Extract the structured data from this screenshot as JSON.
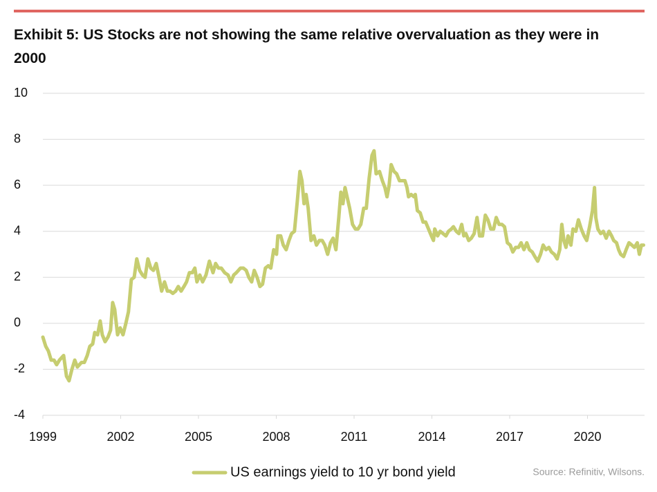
{
  "chart_data": {
    "type": "line",
    "title": "Exhibit 5: US Stocks are not showing the same relative overvaluation as they were in 2000",
    "source": "Source: Refinitiv, Wilsons.",
    "x": [
      1999.0,
      1999.11,
      1999.21,
      1999.32,
      1999.43,
      1999.53,
      1999.64,
      1999.8,
      1999.91,
      2000.01,
      2000.12,
      2000.23,
      2000.33,
      2000.49,
      2000.6,
      2000.71,
      2000.81,
      2000.92,
      2001.0,
      2001.11,
      2001.21,
      2001.29,
      2001.4,
      2001.51,
      2001.61,
      2001.69,
      2001.77,
      2001.88,
      2001.98,
      2002.09,
      2002.2,
      2002.3,
      2002.41,
      2002.52,
      2002.62,
      2002.73,
      2002.84,
      2002.94,
      2003.05,
      2003.16,
      2003.26,
      2003.37,
      2003.48,
      2003.58,
      2003.69,
      2003.8,
      2003.9,
      2004.01,
      2004.12,
      2004.22,
      2004.33,
      2004.44,
      2004.54,
      2004.65,
      2004.76,
      2004.86,
      2004.94,
      2005.05,
      2005.16,
      2005.29,
      2005.42,
      2005.56,
      2005.66,
      2005.77,
      2005.88,
      2006.01,
      2006.14,
      2006.25,
      2006.36,
      2006.46,
      2006.62,
      2006.73,
      2006.84,
      2006.94,
      2007.05,
      2007.15,
      2007.26,
      2007.37,
      2007.47,
      2007.58,
      2007.69,
      2007.79,
      2007.9,
      2008.01,
      2008.06,
      2008.17,
      2008.27,
      2008.38,
      2008.49,
      2008.59,
      2008.7,
      2008.81,
      2008.91,
      2008.99,
      2009.07,
      2009.15,
      2009.23,
      2009.34,
      2009.45,
      2009.55,
      2009.66,
      2009.77,
      2009.87,
      2009.98,
      2010.09,
      2010.19,
      2010.3,
      2010.41,
      2010.49,
      2010.57,
      2010.65,
      2010.73,
      2010.83,
      2010.94,
      2011.05,
      2011.15,
      2011.26,
      2011.37,
      2011.47,
      2011.58,
      2011.69,
      2011.77,
      2011.85,
      2011.98,
      2012.09,
      2012.19,
      2012.27,
      2012.35,
      2012.43,
      2012.54,
      2012.64,
      2012.75,
      2012.86,
      2012.96,
      2013.04,
      2013.1,
      2013.2,
      2013.31,
      2013.36,
      2013.44,
      2013.55,
      2013.66,
      2013.76,
      2013.87,
      2013.98,
      2014.06,
      2014.11,
      2014.22,
      2014.32,
      2014.43,
      2014.54,
      2014.64,
      2014.75,
      2014.83,
      2014.94,
      2015.04,
      2015.15,
      2015.23,
      2015.31,
      2015.42,
      2015.52,
      2015.63,
      2015.74,
      2015.84,
      2015.95,
      2016.06,
      2016.16,
      2016.27,
      2016.38,
      2016.48,
      2016.59,
      2016.7,
      2016.8,
      2016.91,
      2017.02,
      2017.12,
      2017.23,
      2017.34,
      2017.44,
      2017.55,
      2017.66,
      2017.76,
      2017.87,
      2017.97,
      2018.08,
      2018.19,
      2018.29,
      2018.4,
      2018.51,
      2018.61,
      2018.72,
      2018.83,
      2018.93,
      2019.01,
      2019.09,
      2019.17,
      2019.25,
      2019.36,
      2019.44,
      2019.55,
      2019.65,
      2019.76,
      2019.87,
      2019.97,
      2020.08,
      2020.19,
      2020.27,
      2020.32,
      2020.4,
      2020.51,
      2020.61,
      2020.72,
      2020.83,
      2020.93,
      2021.01,
      2021.12,
      2021.2,
      2021.28,
      2021.39,
      2021.49,
      2021.6,
      2021.71,
      2021.81,
      2021.92,
      2022.0,
      2022.08,
      2022.16
    ],
    "series": [
      {
        "name": "US earnings yield to 10 yr bond yield",
        "color": "#c6cd70",
        "values": [
          -0.6,
          -1.0,
          -1.2,
          -1.6,
          -1.6,
          -1.8,
          -1.6,
          -1.4,
          -2.3,
          -2.5,
          -2.0,
          -1.6,
          -1.9,
          -1.7,
          -1.7,
          -1.4,
          -1.0,
          -0.9,
          -0.4,
          -0.5,
          0.1,
          -0.5,
          -0.8,
          -0.6,
          -0.3,
          0.9,
          0.6,
          -0.5,
          -0.2,
          -0.5,
          0.0,
          0.5,
          1.9,
          2.0,
          2.8,
          2.3,
          2.1,
          2.0,
          2.8,
          2.4,
          2.3,
          2.6,
          2.0,
          1.4,
          1.8,
          1.4,
          1.4,
          1.3,
          1.4,
          1.6,
          1.4,
          1.6,
          1.8,
          2.2,
          2.2,
          2.4,
          1.8,
          2.1,
          1.8,
          2.1,
          2.7,
          2.2,
          2.6,
          2.4,
          2.4,
          2.2,
          2.1,
          1.8,
          2.1,
          2.2,
          2.4,
          2.4,
          2.3,
          2.0,
          1.8,
          2.3,
          2.0,
          1.6,
          1.7,
          2.4,
          2.5,
          2.4,
          3.2,
          3.0,
          3.8,
          3.8,
          3.4,
          3.2,
          3.6,
          3.9,
          4.0,
          5.3,
          6.6,
          6.2,
          5.2,
          5.6,
          5.0,
          3.6,
          3.8,
          3.4,
          3.6,
          3.6,
          3.4,
          3.0,
          3.5,
          3.7,
          3.2,
          4.6,
          5.7,
          5.2,
          5.9,
          5.5,
          5.0,
          4.3,
          4.1,
          4.1,
          4.3,
          5.0,
          5.0,
          6.3,
          7.3,
          7.5,
          6.5,
          6.6,
          6.2,
          5.9,
          5.5,
          6.0,
          6.9,
          6.6,
          6.5,
          6.2,
          6.2,
          6.2,
          5.9,
          5.5,
          5.6,
          5.5,
          5.6,
          4.9,
          4.8,
          4.4,
          4.4,
          4.1,
          3.8,
          3.6,
          4.1,
          3.8,
          4.0,
          3.9,
          3.8,
          4.0,
          4.1,
          4.2,
          4.0,
          3.9,
          4.3,
          3.8,
          3.9,
          3.6,
          3.7,
          3.9,
          4.6,
          3.8,
          3.8,
          4.7,
          4.5,
          4.1,
          4.1,
          4.6,
          4.3,
          4.3,
          4.2,
          3.5,
          3.4,
          3.1,
          3.3,
          3.3,
          3.5,
          3.2,
          3.5,
          3.2,
          3.1,
          2.9,
          2.7,
          3.0,
          3.4,
          3.2,
          3.3,
          3.1,
          3.0,
          2.8,
          3.2,
          4.3,
          3.6,
          3.3,
          3.8,
          3.4,
          4.1,
          4.0,
          4.5,
          4.1,
          3.8,
          3.6,
          4.2,
          4.9,
          5.9,
          4.6,
          4.1,
          3.9,
          4.0,
          3.7,
          4.0,
          3.8,
          3.6,
          3.5,
          3.2,
          3.0,
          2.9,
          3.2,
          3.5,
          3.4,
          3.3,
          3.5,
          3.0,
          3.4,
          3.4
        ]
      }
    ],
    "xlim": [
      1999,
      2022.2
    ],
    "xticks": [
      1999,
      2002,
      2005,
      2008,
      2011,
      2014,
      2017,
      2020
    ],
    "ylim": [
      -4,
      10
    ],
    "yticks": [
      -4,
      -2,
      0,
      2,
      4,
      6,
      8,
      10
    ],
    "grid": true,
    "legend": "bottom"
  }
}
